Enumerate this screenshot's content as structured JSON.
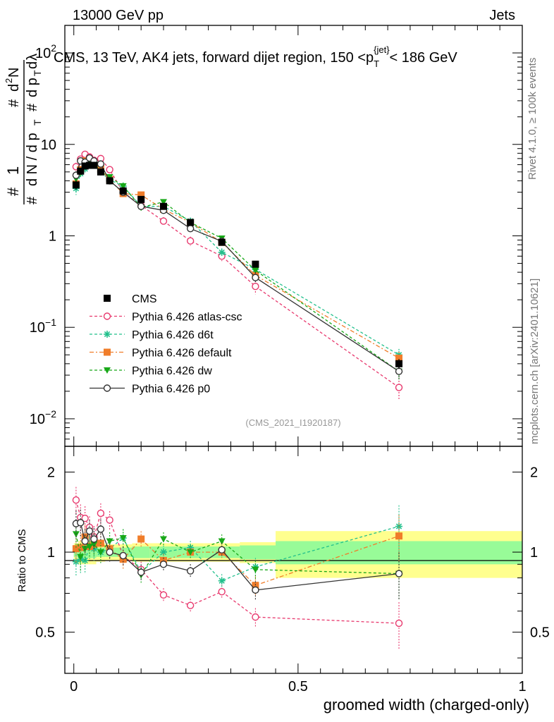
{
  "header": {
    "left": "13000 GeV pp",
    "right": "Jets"
  },
  "side_labels": {
    "rivet": "Rivet 4.1.0, ≥ 100k events",
    "mcplots": "mcplots.cern.ch [arXiv:2401.10621]"
  },
  "chart_data": {
    "type": "scatter",
    "title": "CMS, 13 TeV, AK4 jets, forward dijet region, 150 <p_T^{jet}< 186 GeV",
    "title_parts": {
      "pre": "CMS, 13 TeV, AK4 jets, forward dijet region, 150 <p",
      "sub": "T",
      "sup": "{jet}",
      "post": "< 186 GeV"
    },
    "watermark": "(CMS_2021_I1920187)",
    "xlabel": "groomed width (charged-only)",
    "ylabel": "1/N dN/dp_T d^2N/dp_T dλ",
    "ratio_ylabel": "Ratio to CMS",
    "xlim": [
      -0.02,
      1.0
    ],
    "ylim": [
      0.005,
      200
    ],
    "ratio_ylim": [
      0.35,
      2.5
    ],
    "x_ticks": [
      {
        "v": 0,
        "label": "0"
      },
      {
        "v": 0.5,
        "label": "0.5"
      },
      {
        "v": 1,
        "label": "1"
      }
    ],
    "y_ticks": [
      {
        "v": 0.01,
        "base": "10",
        "exp": "−2"
      },
      {
        "v": 0.1,
        "base": "10",
        "exp": "−1"
      },
      {
        "v": 1,
        "base": "1",
        "exp": ""
      },
      {
        "v": 10,
        "base": "10",
        "exp": ""
      },
      {
        "v": 100,
        "base": "10",
        "exp": "2"
      }
    ],
    "ratio_ticks": [
      {
        "v": 0.5,
        "label": "0.5"
      },
      {
        "v": 1,
        "label": "1"
      },
      {
        "v": 2,
        "label": "2"
      }
    ],
    "x": [
      0.005,
      0.015,
      0.025,
      0.035,
      0.045,
      0.06,
      0.08,
      0.11,
      0.15,
      0.2,
      0.26,
      0.33,
      0.405,
      0.725
    ],
    "bin_edges": [
      0,
      0.01,
      0.02,
      0.03,
      0.04,
      0.05,
      0.07,
      0.09,
      0.13,
      0.17,
      0.23,
      0.29,
      0.37,
      0.45,
      1.0
    ],
    "band": {
      "stat": [
        0.04,
        0.05,
        0.05,
        0.05,
        0.05,
        0.04,
        0.04,
        0.04,
        0.05,
        0.05,
        0.05,
        0.05,
        0.06,
        0.1
      ],
      "total": [
        0.08,
        0.1,
        0.1,
        0.1,
        0.1,
        0.08,
        0.07,
        0.07,
        0.08,
        0.08,
        0.08,
        0.08,
        0.09,
        0.2
      ]
    },
    "series": [
      {
        "name": "CMS",
        "color": "#000000",
        "marker": "square",
        "dash": "",
        "values": [
          3.6,
          5.1,
          5.8,
          5.9,
          5.9,
          5.0,
          4.0,
          3.1,
          2.5,
          2.1,
          1.4,
          0.85,
          0.49,
          0.04
        ],
        "errors": [
          0.4,
          0.4,
          0.4,
          0.4,
          0.4,
          0.3,
          0.2,
          0.2,
          0.15,
          0.1,
          0.08,
          0.05,
          0.03,
          0.005
        ]
      },
      {
        "name": "Pythia 6.426 atlas-csc",
        "color": "#e8396e",
        "marker": "open-circle",
        "dash": "4,3",
        "values": [
          5.7,
          6.9,
          7.8,
          7.3,
          6.7,
          7.0,
          5.3,
          3.0,
          2.15,
          1.45,
          0.88,
          0.6,
          0.28,
          0.022
        ],
        "errors": [
          0.6,
          0.6,
          0.6,
          0.6,
          0.6,
          0.5,
          0.4,
          0.3,
          0.2,
          0.15,
          0.1,
          0.07,
          0.05,
          0.006
        ]
      },
      {
        "name": "Pythia 6.426 d6t",
        "color": "#22c08c",
        "marker": "star",
        "dash": "4,3",
        "values": [
          3.3,
          4.8,
          5.4,
          6.2,
          6.1,
          5.0,
          4.1,
          3.5,
          2.1,
          2.1,
          1.45,
          0.66,
          0.43,
          0.05
        ],
        "errors": [
          0.5,
          0.5,
          0.5,
          0.5,
          0.5,
          0.4,
          0.3,
          0.3,
          0.2,
          0.15,
          0.1,
          0.07,
          0.05,
          0.008
        ]
      },
      {
        "name": "Pythia 6.426 default",
        "color": "#f07d2a",
        "marker": "square",
        "dash": "6,3,2,3",
        "values": [
          3.7,
          5.3,
          6.6,
          6.2,
          6.3,
          5.4,
          4.1,
          2.9,
          2.8,
          1.95,
          1.4,
          0.85,
          0.37,
          0.046
        ],
        "errors": [
          0.5,
          0.5,
          0.5,
          0.5,
          0.5,
          0.4,
          0.3,
          0.3,
          0.2,
          0.15,
          0.1,
          0.07,
          0.05,
          0.008
        ]
      },
      {
        "name": "Pythia 6.426 dw",
        "color": "#18a818",
        "marker": "triangle-down",
        "dash": "4,3",
        "values": [
          4.2,
          4.9,
          6.0,
          6.2,
          6.3,
          5.0,
          4.4,
          3.5,
          2.05,
          2.35,
          1.4,
          0.94,
          0.42,
          0.033
        ],
        "errors": [
          0.5,
          0.5,
          0.5,
          0.5,
          0.5,
          0.4,
          0.3,
          0.3,
          0.2,
          0.15,
          0.1,
          0.07,
          0.05,
          0.007
        ]
      },
      {
        "name": "Pythia 6.426 p0",
        "color": "#333333",
        "marker": "open-circle",
        "dash": "",
        "values": [
          4.6,
          6.6,
          6.4,
          7.1,
          6.6,
          6.1,
          4.0,
          3.0,
          2.1,
          1.9,
          1.2,
          0.87,
          0.35,
          0.033
        ],
        "errors": [
          0.5,
          0.6,
          0.5,
          0.6,
          0.5,
          0.5,
          0.3,
          0.3,
          0.2,
          0.15,
          0.1,
          0.07,
          0.05,
          0.006
        ]
      }
    ],
    "ratios": {
      "Pythia 6.426 atlas-csc": [
        1.57,
        1.35,
        1.34,
        1.24,
        1.14,
        1.4,
        1.32,
        0.97,
        0.86,
        0.69,
        0.63,
        0.71,
        0.57,
        0.54
      ],
      "Pythia 6.426 d6t": [
        0.92,
        0.94,
        0.93,
        1.05,
        1.03,
        1.0,
        1.03,
        1.13,
        0.84,
        1.0,
        1.04,
        0.78,
        0.88,
        1.25
      ],
      "Pythia 6.426 default": [
        1.03,
        1.04,
        1.14,
        1.05,
        1.07,
        1.08,
        1.03,
        0.94,
        1.12,
        0.93,
        1.0,
        1.0,
        0.75,
        1.15
      ],
      "Pythia 6.426 dw": [
        1.17,
        0.96,
        1.03,
        1.05,
        1.07,
        1.0,
        1.1,
        1.13,
        0.82,
        1.12,
        1.0,
        1.1,
        0.86,
        0.83
      ],
      "Pythia 6.426 p0": [
        1.28,
        1.29,
        1.1,
        1.2,
        1.12,
        1.22,
        1.0,
        0.97,
        0.84,
        0.9,
        0.85,
        1.02,
        0.72,
        0.83
      ]
    },
    "ratio_errors": [
      0.12,
      0.12,
      0.11,
      0.1,
      0.1,
      0.09,
      0.08,
      0.08,
      0.07,
      0.06,
      0.06,
      0.06,
      0.08,
      0.2
    ]
  }
}
